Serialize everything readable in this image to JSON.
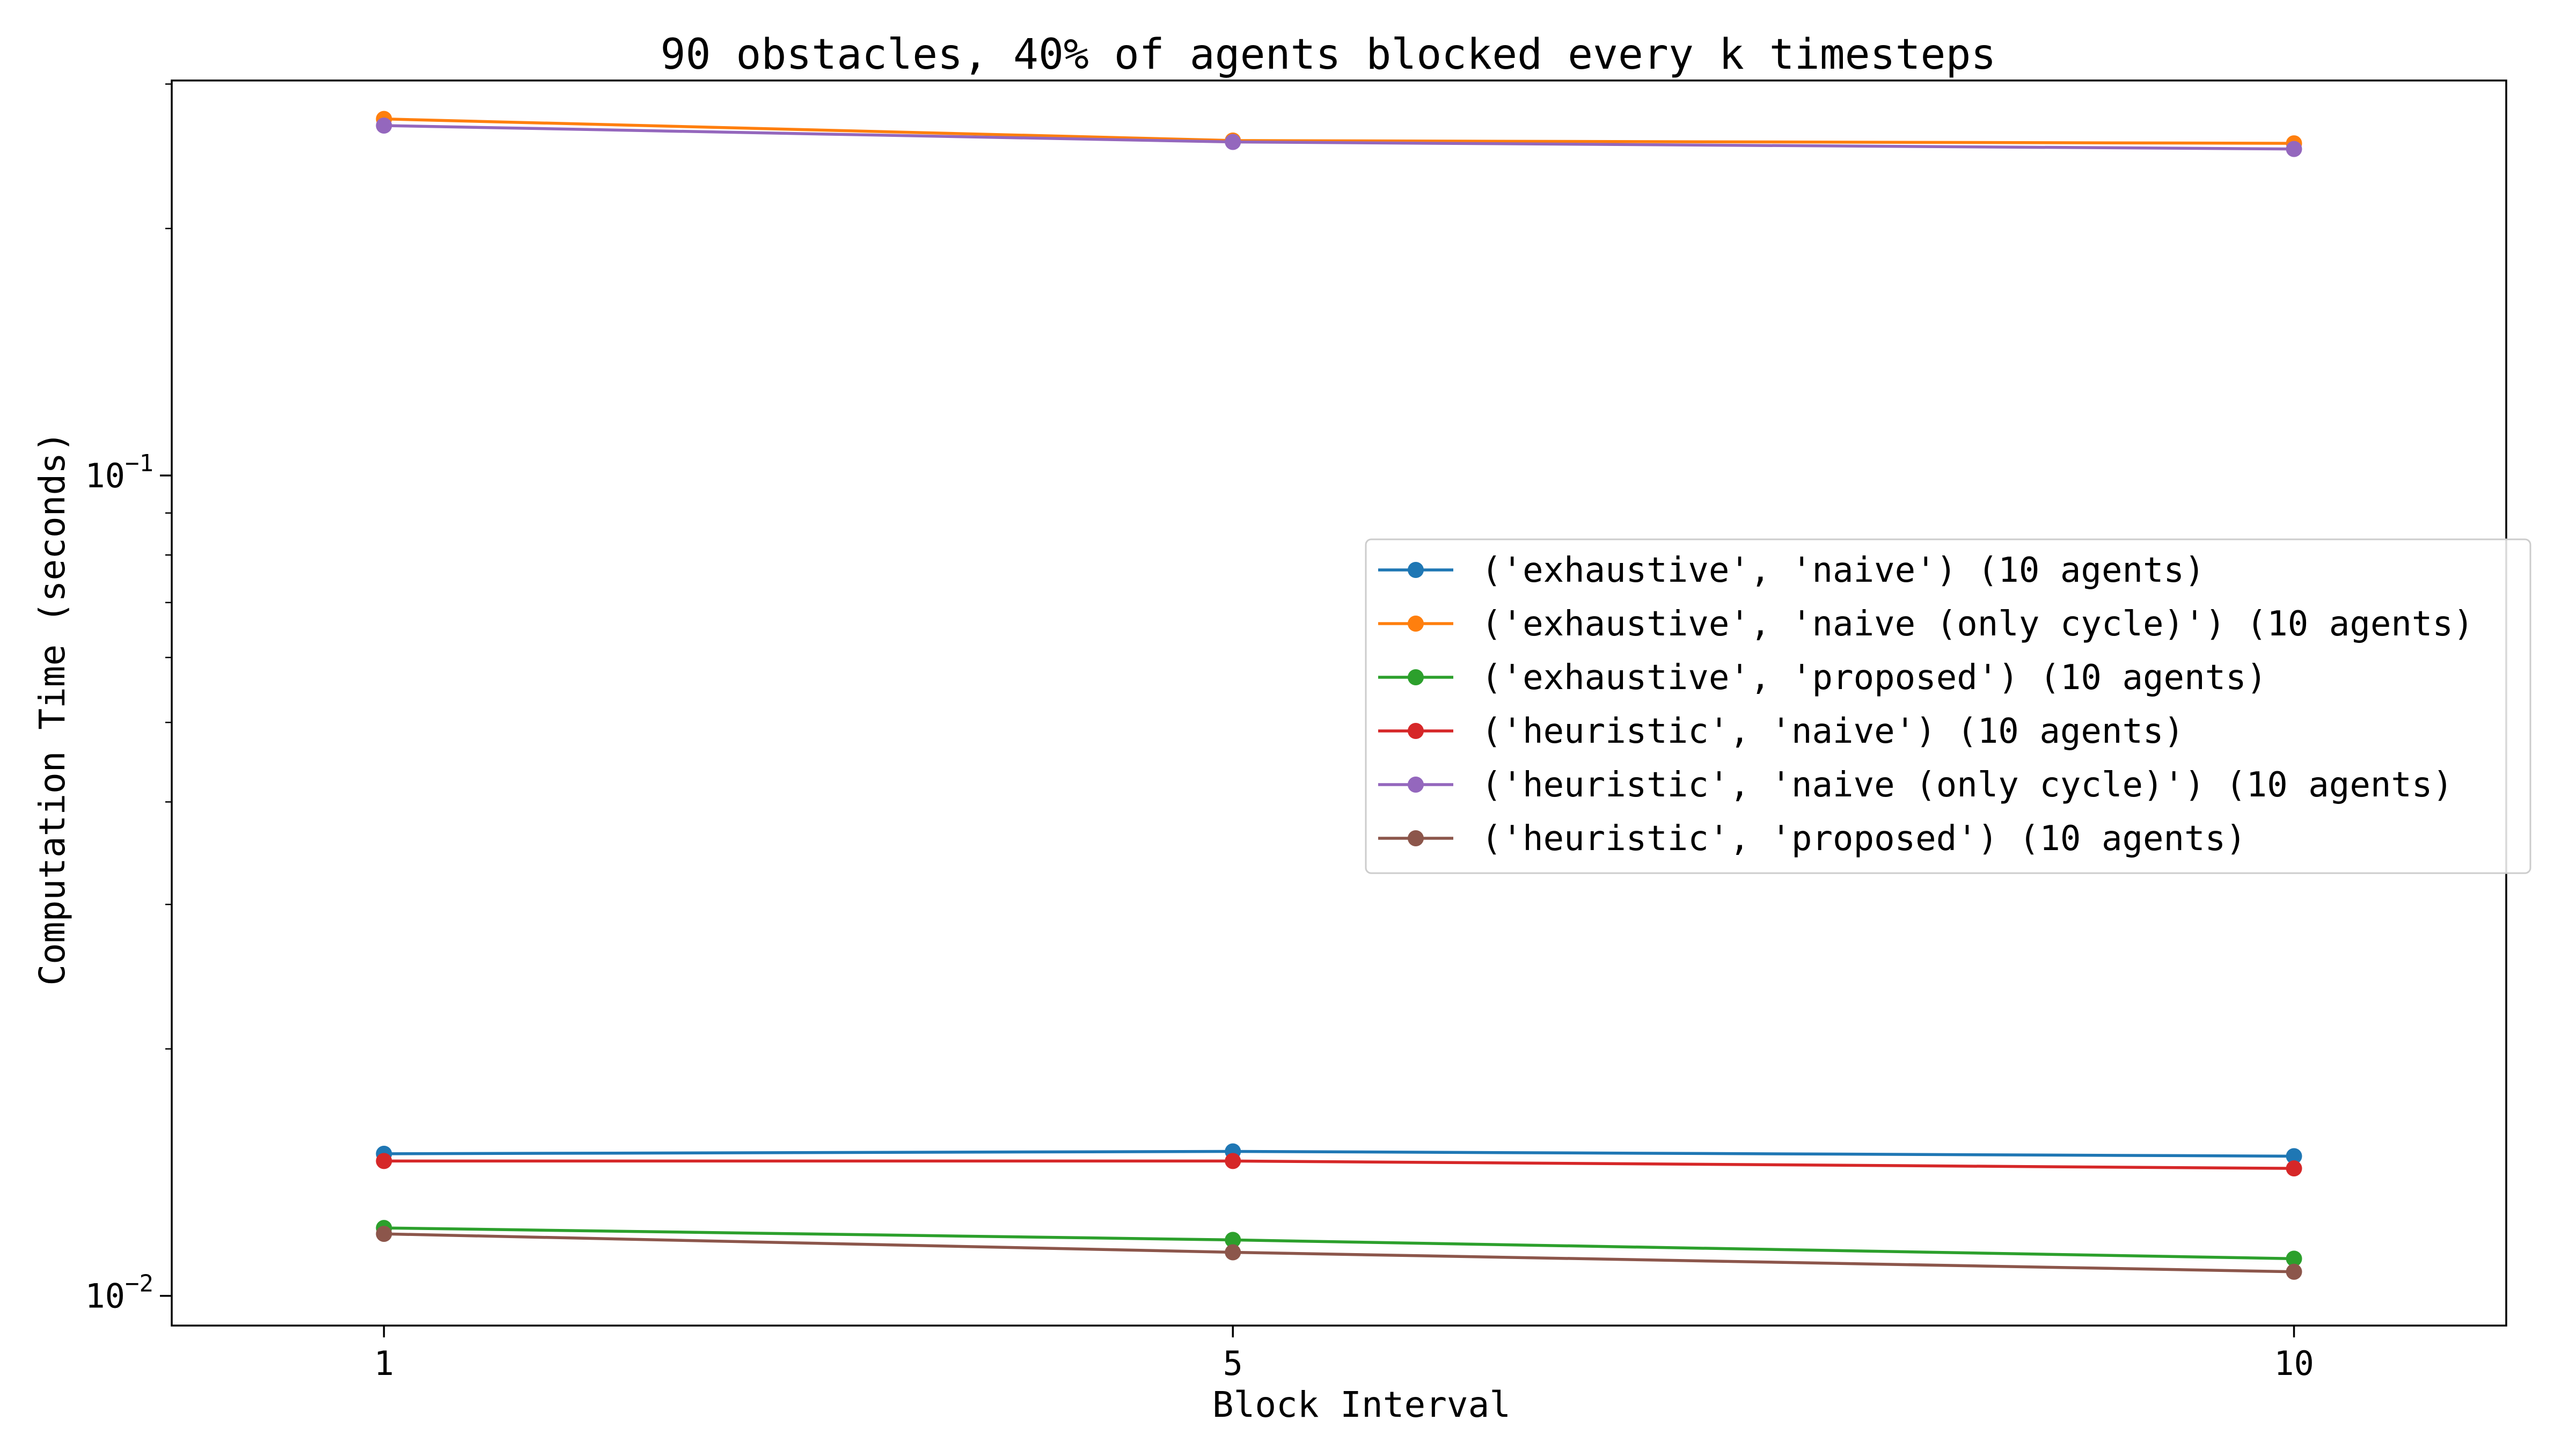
{
  "chart_data": {
    "type": "line",
    "title": "90 obstacles, 40% of agents blocked every k timesteps",
    "xlabel": "Block Interval",
    "ylabel": "Computation Time (seconds)",
    "y_scale": "log",
    "x_scale": "linear",
    "xlim": [
      0,
      11
    ],
    "ylim": [
      0.0092,
      0.303
    ],
    "x": [
      1,
      5,
      10
    ],
    "x_ticks": [
      {
        "value": 1,
        "label": "1"
      },
      {
        "value": 5,
        "label": "5"
      },
      {
        "value": 10,
        "label": "10"
      }
    ],
    "y_ticks": [
      {
        "value": 0.1,
        "base": "10",
        "exponent": "−1"
      },
      {
        "value": 0.01,
        "base": "10",
        "exponent": "−2"
      }
    ],
    "grid": false,
    "legend_position": "center-right",
    "series": [
      {
        "name": "('exhaustive', 'naive') (10 agents)",
        "color": "#1f77b4",
        "values": [
          0.0149,
          0.015,
          0.0148
        ]
      },
      {
        "name": "('exhaustive', 'naive (only cycle)') (10 agents)",
        "color": "#ff7f0e",
        "values": [
          0.272,
          0.256,
          0.254
        ]
      },
      {
        "name": "('exhaustive', 'proposed') (10 agents)",
        "color": "#2ca02c",
        "values": [
          0.0121,
          0.0117,
          0.0111
        ]
      },
      {
        "name": "('heuristic', 'naive') (10 agents)",
        "color": "#d62728",
        "values": [
          0.0146,
          0.0146,
          0.0143
        ]
      },
      {
        "name": "('heuristic', 'naive (only cycle)') (10 agents)",
        "color": "#9467bd",
        "values": [
          0.267,
          0.255,
          0.25
        ]
      },
      {
        "name": "('heuristic', 'proposed') (10 agents)",
        "color": "#8c564b",
        "values": [
          0.0119,
          0.0113,
          0.0107
        ]
      }
    ]
  }
}
